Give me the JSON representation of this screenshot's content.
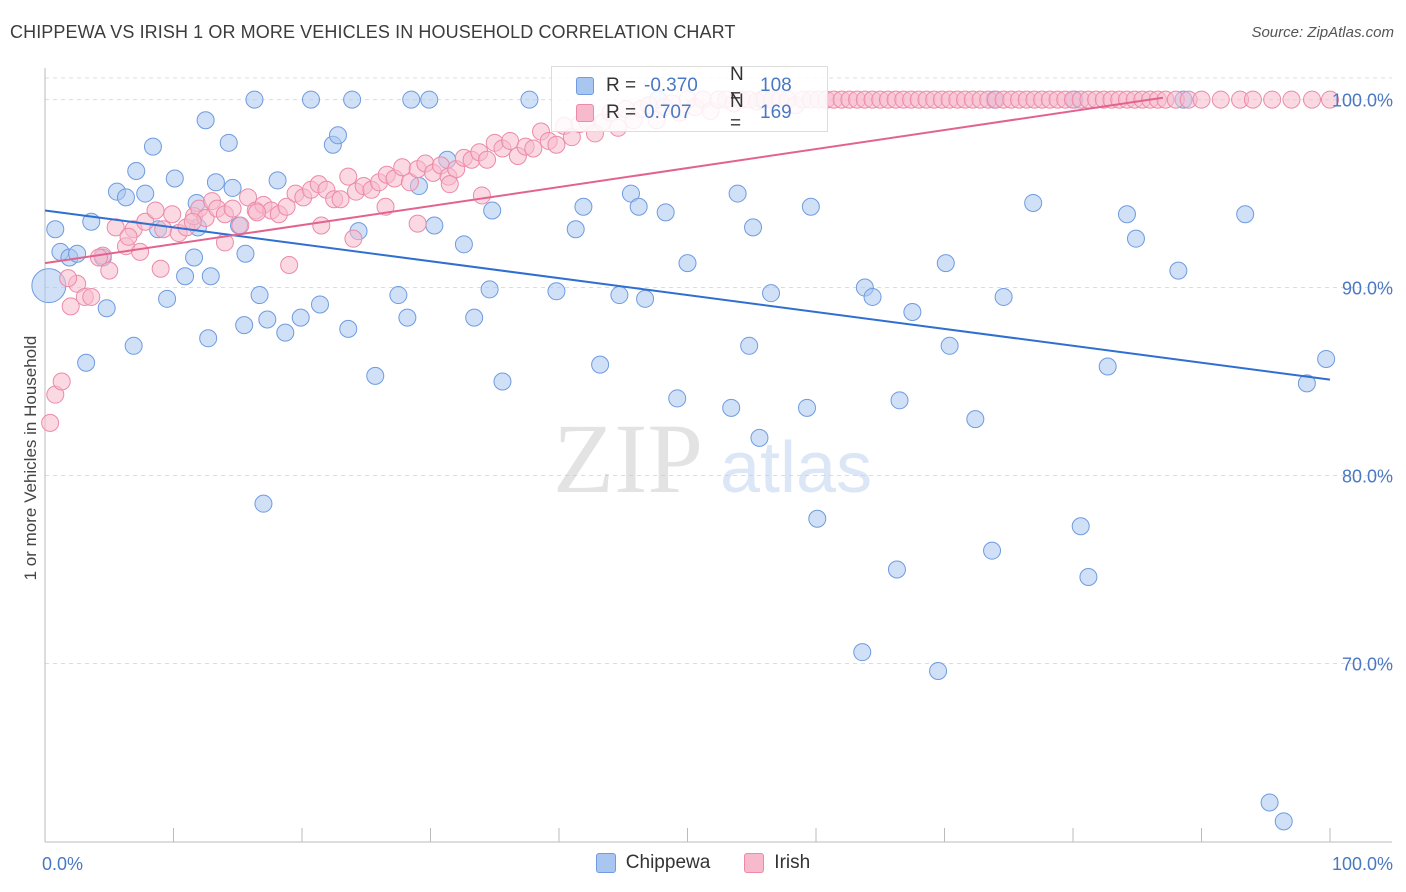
{
  "header": {
    "title": "CHIPPEWA VS IRISH 1 OR MORE VEHICLES IN HOUSEHOLD CORRELATION CHART",
    "source": "Source: ZipAtlas.com"
  },
  "watermark": {
    "zip": "ZIP",
    "atlas": "atlas"
  },
  "legend": {
    "rows": [
      {
        "r_label": "R =",
        "r_value": "-0.370",
        "n_label": "N =",
        "n_value": "108",
        "color": "#a8c6f0",
        "border": "#6f9be0"
      },
      {
        "r_label": "R =",
        "r_value": "0.707",
        "n_label": "N =",
        "n_value": "169",
        "color": "#f7b9cc",
        "border": "#ec8aa8"
      }
    ]
  },
  "bottom_legend": [
    {
      "label": "Chippewa",
      "color": "#a8c6f0",
      "border": "#6f9be0"
    },
    {
      "label": "Irish",
      "color": "#f7b9cc",
      "border": "#ec8aa8"
    }
  ],
  "chart_data": {
    "type": "scatter",
    "title": "CHIPPEWA VS IRISH 1 OR MORE VEHICLES IN HOUSEHOLD CORRELATION CHART",
    "xlabel": "",
    "ylabel": "1 or more Vehicles in Household",
    "xlim": [
      0,
      100
    ],
    "ylim": [
      60.5,
      102
    ],
    "x_tick_labels": [
      "0.0%",
      "100.0%"
    ],
    "y_ticks": [
      100,
      90,
      80,
      70
    ],
    "y_tick_labels": [
      "100.0%",
      "90.0%",
      "80.0%",
      "70.0%"
    ],
    "grid": true,
    "legend_position": "top-center",
    "series": [
      {
        "name": "Chippewa",
        "color": "#6f9be0",
        "fill": "#a8c6f0",
        "line_color": "#2f6fd0",
        "trend": {
          "x": [
            0,
            100
          ],
          "y": [
            94.1,
            85.1
          ]
        },
        "x": [
          0.3,
          0.8,
          1.2,
          1.9,
          2.5,
          3.2,
          3.6,
          4.5,
          4.8,
          5.6,
          6.3,
          6.9,
          7.1,
          7.8,
          8.4,
          8.8,
          9.5,
          10.1,
          10.9,
          11.6,
          11.8,
          11.9,
          12.5,
          12.7,
          12.9,
          13.3,
          14.3,
          14.6,
          15.1,
          15.5,
          15.6,
          16.3,
          16.7,
          17.0,
          17.3,
          18.1,
          18.7,
          19.9,
          20.7,
          21.4,
          22.4,
          22.8,
          23.6,
          23.9,
          24.4,
          25.7,
          27.5,
          28.2,
          28.5,
          29.1,
          29.9,
          30.3,
          31.3,
          32.6,
          33.4,
          34.6,
          34.8,
          35.6,
          37.7,
          39.8,
          41.3,
          41.9,
          43.2,
          44.7,
          45.6,
          46.2,
          46.7,
          47.7,
          48.3,
          49.2,
          50.0,
          53.4,
          53.9,
          54.8,
          55.1,
          55.6,
          55.8,
          56.5,
          59.3,
          59.6,
          60.1,
          63.6,
          63.8,
          64.4,
          66.3,
          66.5,
          67.5,
          69.5,
          70.1,
          70.4,
          72.4,
          73.7,
          73.9,
          74.6,
          76.9,
          80.1,
          80.6,
          81.2,
          82.7,
          84.2,
          84.9,
          88.2,
          88.6,
          93.4,
          95.3,
          96.4,
          98.2,
          99.7
        ],
        "y": [
          90.1,
          93.1,
          91.9,
          91.6,
          91.8,
          86.0,
          93.5,
          91.6,
          88.9,
          95.1,
          94.8,
          86.9,
          96.2,
          95.0,
          97.5,
          93.1,
          89.4,
          95.8,
          90.6,
          91.6,
          94.5,
          93.2,
          98.9,
          87.3,
          90.6,
          95.6,
          97.7,
          95.3,
          93.3,
          88.0,
          91.8,
          100.0,
          89.6,
          78.5,
          88.3,
          95.7,
          87.6,
          88.4,
          100.0,
          89.1,
          97.6,
          98.1,
          87.8,
          100.0,
          93.0,
          85.3,
          89.6,
          88.4,
          100.0,
          95.4,
          100.0,
          93.3,
          96.8,
          92.3,
          88.4,
          89.9,
          94.1,
          85.0,
          100.0,
          89.8,
          93.1,
          94.3,
          85.9,
          89.6,
          95.0,
          94.3,
          89.4,
          100.0,
          94.0,
          84.1,
          91.3,
          83.6,
          95.0,
          86.9,
          93.2,
          82.0,
          100.0,
          89.7,
          83.6,
          94.3,
          77.7,
          70.6,
          90.0,
          89.5,
          75.0,
          84.0,
          88.7,
          69.6,
          91.3,
          86.9,
          83.0,
          76.0,
          100.0,
          89.5,
          94.5,
          100.0,
          77.3,
          74.6,
          85.8,
          93.9,
          92.6,
          90.9,
          100.0,
          93.9,
          62.6,
          61.6,
          84.9,
          86.2
        ]
      },
      {
        "name": "Irish",
        "color": "#ec8aa8",
        "fill": "#f7b9cc",
        "line_color": "#e2648e",
        "trend": {
          "x": [
            0,
            87
          ],
          "y": [
            91.3,
            100.1
          ]
        },
        "x": [
          0.4,
          0.8,
          1.3,
          2.0,
          2.5,
          3.1,
          3.6,
          4.5,
          5.0,
          5.5,
          6.3,
          6.9,
          7.4,
          7.8,
          8.6,
          9.2,
          9.9,
          10.4,
          11.0,
          11.6,
          12.0,
          12.5,
          13.0,
          13.4,
          14.0,
          14.6,
          15.2,
          15.8,
          16.4,
          17.0,
          17.6,
          18.2,
          18.8,
          19.5,
          20.1,
          20.7,
          21.3,
          21.9,
          22.5,
          23.0,
          23.6,
          24.2,
          24.8,
          25.4,
          26.0,
          26.6,
          27.2,
          27.8,
          28.4,
          29.0,
          29.6,
          30.2,
          30.8,
          31.4,
          32.0,
          32.6,
          33.2,
          33.8,
          34.4,
          35.0,
          35.6,
          36.2,
          36.8,
          37.4,
          38.0,
          38.6,
          39.2,
          39.8,
          40.4,
          41.0,
          41.6,
          42.2,
          42.8,
          43.4,
          44.0,
          44.6,
          45.2,
          45.8,
          46.4,
          47.0,
          47.6,
          48.2,
          48.8,
          49.4,
          50.0,
          50.6,
          51.2,
          51.8,
          52.4,
          53.0,
          53.6,
          54.2,
          54.8,
          55.4,
          56.0,
          56.6,
          57.2,
          57.8,
          58.4,
          59.0,
          59.6,
          60.2,
          60.8,
          61.4,
          62.0,
          62.6,
          63.2,
          63.8,
          64.4,
          65.0,
          65.6,
          66.2,
          66.8,
          67.4,
          68.0,
          68.6,
          69.2,
          69.8,
          70.4,
          71.0,
          71.6,
          72.2,
          72.8,
          73.4,
          74.0,
          74.6,
          75.2,
          75.8,
          76.4,
          77.0,
          77.6,
          78.2,
          78.8,
          79.4,
          80.0,
          80.6,
          81.2,
          81.8,
          82.4,
          83.0,
          83.6,
          84.2,
          84.8,
          85.4,
          86.0,
          86.6,
          87.2,
          88.0,
          89.0,
          90.0,
          91.5,
          93.0,
          94.0,
          95.5,
          97.0,
          98.6,
          100.0,
          1.8,
          4.2,
          6.5,
          9.0,
          11.5,
          14.0,
          16.5,
          19.0,
          21.5,
          24.0,
          26.5,
          29.0,
          31.5,
          34.0
        ],
        "y": [
          82.8,
          84.3,
          85.0,
          89.0,
          90.2,
          89.5,
          89.5,
          91.7,
          90.9,
          93.2,
          92.2,
          93.1,
          91.9,
          93.5,
          94.1,
          93.1,
          93.9,
          92.9,
          93.2,
          93.8,
          94.2,
          93.7,
          94.6,
          94.2,
          93.9,
          94.2,
          93.3,
          94.8,
          94.1,
          94.4,
          94.1,
          93.9,
          94.3,
          95.0,
          94.8,
          95.2,
          95.5,
          95.2,
          94.7,
          94.7,
          95.9,
          95.1,
          95.4,
          95.2,
          95.6,
          96.0,
          95.8,
          96.4,
          95.6,
          96.3,
          96.6,
          96.1,
          96.5,
          95.9,
          96.3,
          96.9,
          96.8,
          97.2,
          96.8,
          97.7,
          97.4,
          97.8,
          97.0,
          97.5,
          97.4,
          98.3,
          97.8,
          97.6,
          98.6,
          98.0,
          98.7,
          98.8,
          98.2,
          98.8,
          99.3,
          98.5,
          99.5,
          98.9,
          99.5,
          99.7,
          98.9,
          99.6,
          99.8,
          99.3,
          100.0,
          99.6,
          100.0,
          99.4,
          100.0,
          100.0,
          99.8,
          100.0,
          100.0,
          99.9,
          100.0,
          100.0,
          100.0,
          100.0,
          99.7,
          100.0,
          100.0,
          100.0,
          100.0,
          100.0,
          100.0,
          100.0,
          100.0,
          100.0,
          100.0,
          100.0,
          100.0,
          100.0,
          100.0,
          100.0,
          100.0,
          100.0,
          100.0,
          100.0,
          100.0,
          100.0,
          100.0,
          100.0,
          100.0,
          100.0,
          100.0,
          100.0,
          100.0,
          100.0,
          100.0,
          100.0,
          100.0,
          100.0,
          100.0,
          100.0,
          100.0,
          100.0,
          100.0,
          100.0,
          100.0,
          100.0,
          100.0,
          100.0,
          100.0,
          100.0,
          100.0,
          100.0,
          100.0,
          100.0,
          100.0,
          100.0,
          100.0,
          100.0,
          100.0,
          100.0,
          100.0,
          100.0,
          100.0,
          90.5,
          91.6,
          92.7,
          91.0,
          93.5,
          92.4,
          94.0,
          91.2,
          93.3,
          92.6,
          94.3,
          93.4,
          95.5,
          94.9
        ]
      }
    ]
  }
}
